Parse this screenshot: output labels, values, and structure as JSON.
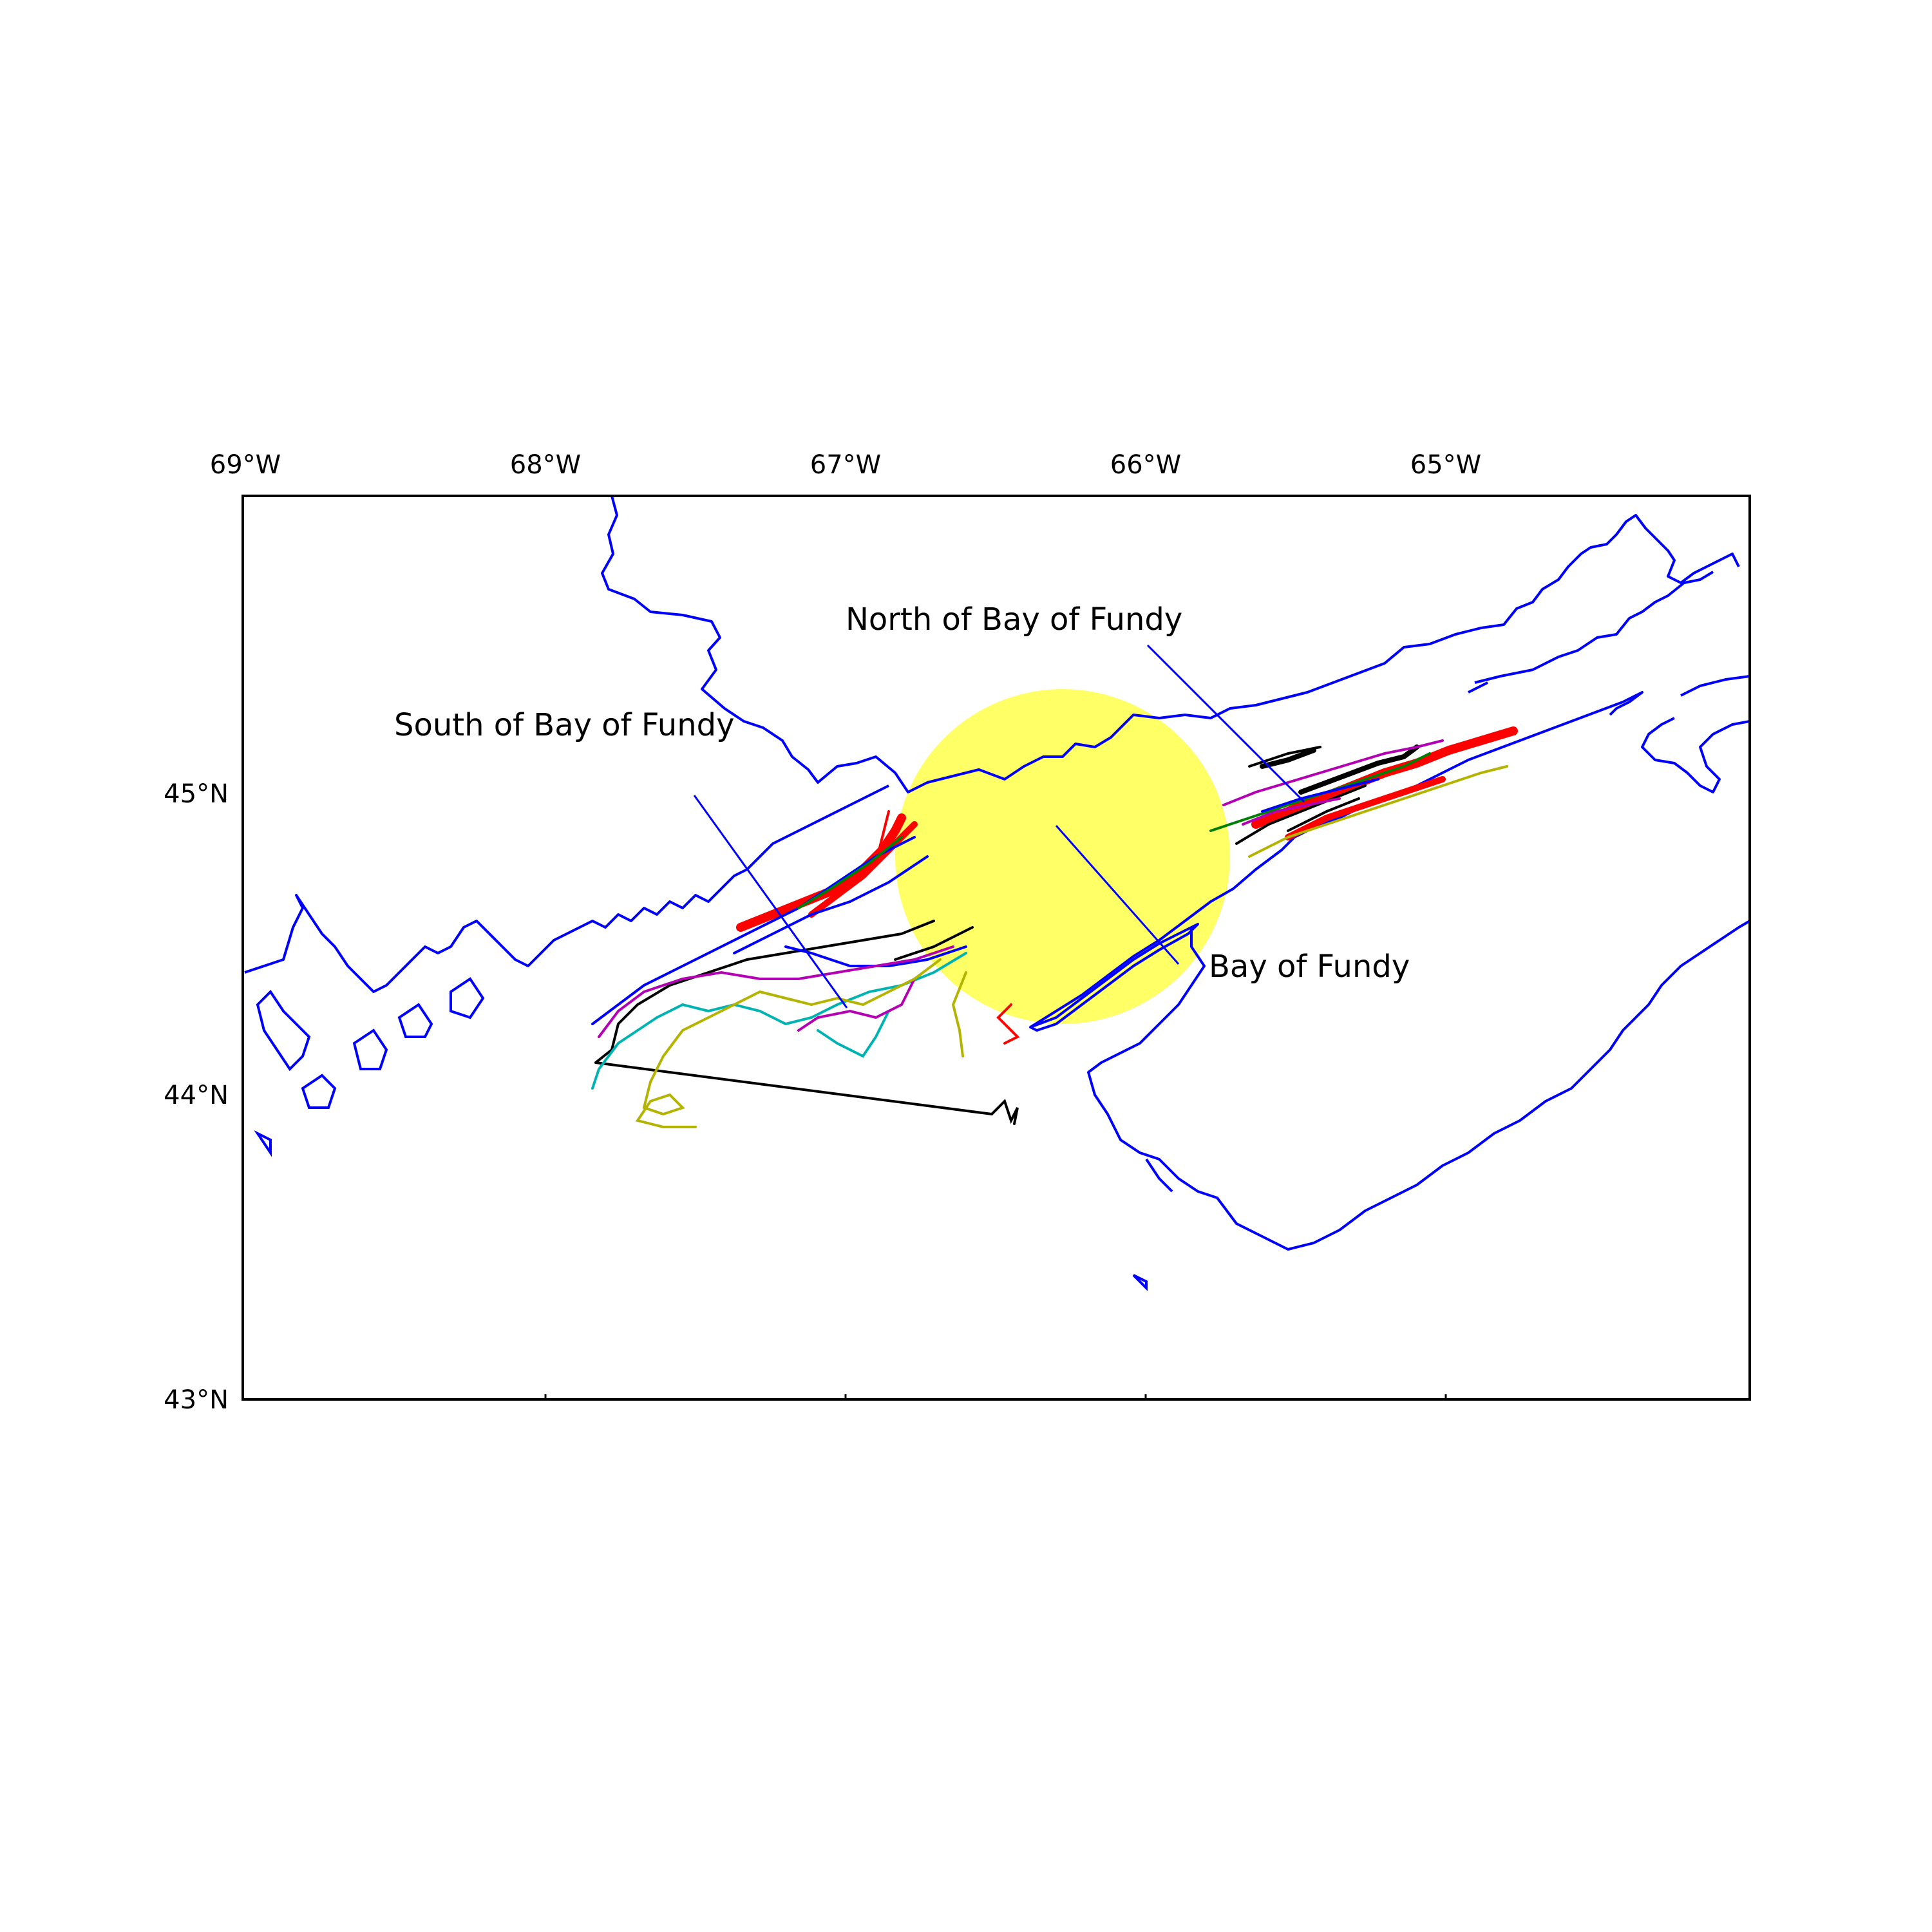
{
  "map": {
    "type": "map",
    "extent": {
      "lon_min": -69,
      "lon_max": -64,
      "lat_min": 43,
      "lat_max": 46
    },
    "lon_ticks": [
      {
        "value": -69,
        "label": "69°W"
      },
      {
        "value": -68,
        "label": "68°W"
      },
      {
        "value": -67,
        "label": "67°W"
      },
      {
        "value": -66,
        "label": "66°W"
      },
      {
        "value": -65,
        "label": "65°W"
      }
    ],
    "lat_ticks": [
      {
        "value": 45,
        "label": "45°N"
      },
      {
        "value": 44,
        "label": "44°N"
      },
      {
        "value": 43,
        "label": "43°N"
      }
    ],
    "labels": {
      "north": "North of Bay of Fundy",
      "south": "South of Bay of Fundy",
      "bay": "Bay of Fundy"
    },
    "colors": {
      "coastline": "#0000ff",
      "highlight_area": "#ffff66",
      "tracks": [
        "#ff0000",
        "#000000",
        "#0000ff",
        "#00b3b3",
        "#b300b3",
        "#b3b300",
        "#008000"
      ]
    }
  }
}
